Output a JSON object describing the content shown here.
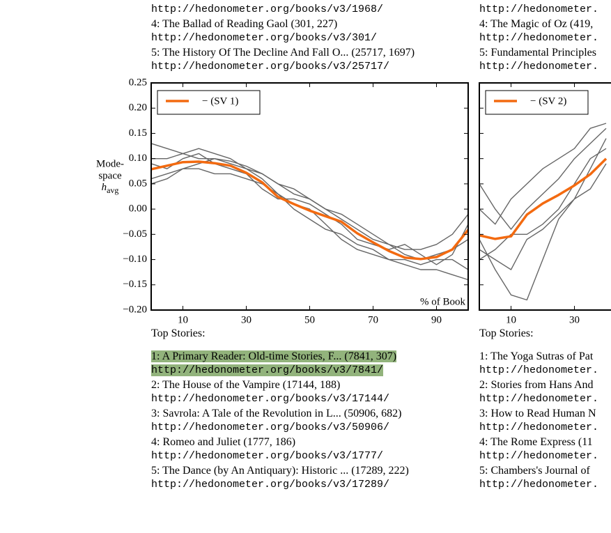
{
  "columns": [
    {
      "top_stories": [
        {
          "url": "http://hedonometer.org/books/v3/1968/"
        },
        {
          "title": "4: The Ballad of Reading Gaol (301, 227)",
          "url": "http://hedonometer.org/books/v3/301/"
        },
        {
          "title": "5: The History Of The Decline And Fall O... (25717, 1697)",
          "url": "http://hedonometer.org/books/v3/25717/"
        }
      ],
      "heading": "Top Stories:",
      "stories": [
        {
          "title": "1: A Primary Reader: Old-time Stories, F... (7841, 307)",
          "url": "http://hedonometer.org/books/v3/7841/",
          "highlight": true
        },
        {
          "title": "2: The House of the Vampire (17144, 188)",
          "url": "http://hedonometer.org/books/v3/17144/"
        },
        {
          "title": "3: Savrola: A Tale of the Revolution in L... (50906, 682)",
          "url": "http://hedonometer.org/books/v3/50906/"
        },
        {
          "title": "4: Romeo and Juliet (1777, 186)",
          "url": "http://hedonometer.org/books/v3/1777/"
        },
        {
          "title": "5: The Dance (by An Antiquary): Historic ... (17289, 222)",
          "url": "http://hedonometer.org/books/v3/17289/"
        }
      ]
    },
    {
      "top_stories": [
        {
          "url": "http://hedonometer."
        },
        {
          "title": "4: The Magic of Oz (419,",
          "url": "http://hedonometer."
        },
        {
          "title": "5: Fundamental Principles",
          "url": "http://hedonometer."
        }
      ],
      "heading": "Top Stories:",
      "stories": [
        {
          "title": "1: The Yoga Sutras of Pat",
          "url": "http://hedonometer."
        },
        {
          "title": "2: Stories from Hans And",
          "url": "http://hedonometer."
        },
        {
          "title": "3: How to Read Human N",
          "url": "http://hedonometer."
        },
        {
          "title": "4: The Rome Express (11",
          "url": "http://hedonometer."
        },
        {
          "title": "5: Chambers's Journal of",
          "url": "http://hedonometer."
        }
      ]
    }
  ],
  "chart_data": [
    {
      "type": "line",
      "ylabel": [
        "Mode-",
        "space"
      ],
      "ylabel_symbol": "h",
      "ylabel_subscript": "avg",
      "annotation": "% of Book",
      "show_ytick_labels": true,
      "xlim": [
        0,
        100
      ],
      "xticks": [
        10,
        30,
        50,
        70,
        90
      ],
      "ylim": [
        -0.2,
        0.25
      ],
      "yticks": [
        {
          "value": -0.2,
          "label": "−0.20"
        },
        {
          "value": -0.15,
          "label": "−0.15"
        },
        {
          "value": -0.1,
          "label": "−0.10"
        },
        {
          "value": -0.05,
          "label": "−0.05"
        },
        {
          "value": 0,
          "label": "0.00"
        },
        {
          "value": 0.05,
          "label": "0.05"
        },
        {
          "value": 0.1,
          "label": "0.10"
        },
        {
          "value": 0.15,
          "label": "0.15"
        },
        {
          "value": 0.2,
          "label": "0.20"
        },
        {
          "value": 0.25,
          "label": "0.25"
        }
      ],
      "x": [
        0,
        5,
        10,
        15,
        20,
        25,
        30,
        35,
        40,
        45,
        50,
        55,
        60,
        65,
        70,
        75,
        80,
        85,
        90,
        95,
        100
      ],
      "series": [
        {
          "color": "#666666",
          "values": [
            0.13,
            0.12,
            0.11,
            0.1,
            0.1,
            0.095,
            0.085,
            0.07,
            0.05,
            0.04,
            0.02,
            0.0,
            -0.02,
            -0.04,
            -0.06,
            -0.07,
            -0.08,
            -0.08,
            -0.07,
            -0.05,
            -0.01
          ]
        },
        {
          "color": "#666666",
          "values": [
            0.06,
            0.07,
            0.08,
            0.09,
            0.1,
            0.09,
            0.08,
            0.06,
            0.03,
            0.01,
            0.0,
            -0.03,
            -0.06,
            -0.08,
            -0.09,
            -0.1,
            -0.11,
            -0.12,
            -0.12,
            -0.13,
            -0.14
          ]
        },
        {
          "color": "#666666",
          "values": [
            0.1,
            0.1,
            0.11,
            0.12,
            0.11,
            0.1,
            0.08,
            0.07,
            0.05,
            0.03,
            0.02,
            0.0,
            -0.01,
            -0.03,
            -0.05,
            -0.07,
            -0.09,
            -0.1,
            -0.09,
            -0.08,
            -0.06
          ]
        },
        {
          "color": "#666666",
          "values": [
            0.05,
            0.06,
            0.08,
            0.08,
            0.07,
            0.07,
            0.06,
            0.05,
            0.03,
            0.0,
            -0.02,
            -0.04,
            -0.05,
            -0.07,
            -0.08,
            -0.1,
            -0.1,
            -0.11,
            -0.1,
            -0.1,
            -0.12
          ]
        },
        {
          "color": "#666666",
          "values": [
            0.09,
            0.08,
            0.1,
            0.11,
            0.09,
            0.08,
            0.07,
            0.04,
            0.02,
            0.02,
            0.01,
            -0.01,
            -0.03,
            -0.06,
            -0.07,
            -0.08,
            -0.07,
            -0.09,
            -0.11,
            -0.09,
            -0.03
          ]
        },
        {
          "name": "− (SV 1)",
          "color": "#f36a10",
          "values": [
            0.079,
            0.086,
            0.093,
            0.094,
            0.091,
            0.086,
            0.072,
            0.053,
            0.024,
            0.01,
            -0.003,
            -0.014,
            -0.025,
            -0.048,
            -0.066,
            -0.083,
            -0.096,
            -0.099,
            -0.095,
            -0.08,
            -0.041
          ]
        }
      ]
    },
    {
      "type": "line",
      "show_ytick_labels": false,
      "xlim": [
        0,
        100
      ],
      "xticks": [
        10,
        30
      ],
      "ylim": [
        -0.2,
        0.25
      ],
      "yticks": [
        -0.2,
        -0.15,
        -0.1,
        -0.05,
        0,
        0.05,
        0.1,
        0.15,
        0.2,
        0.25
      ],
      "x": [
        0,
        5,
        10,
        15,
        20,
        25,
        30,
        35,
        40
      ],
      "series": [
        {
          "color": "#666666",
          "values": [
            -0.06,
            -0.12,
            -0.17,
            -0.18,
            -0.1,
            -0.02,
            0.02,
            0.08,
            0.14
          ]
        },
        {
          "color": "#666666",
          "values": [
            0.0,
            -0.03,
            0.02,
            0.05,
            0.08,
            0.1,
            0.12,
            0.16,
            0.17
          ]
        },
        {
          "color": "#666666",
          "values": [
            -0.1,
            -0.08,
            -0.05,
            -0.05,
            -0.03,
            0.0,
            0.05,
            0.1,
            0.12
          ]
        },
        {
          "color": "#666666",
          "values": [
            0.05,
            0.0,
            -0.04,
            0.0,
            0.03,
            0.06,
            0.1,
            0.13,
            0.16
          ]
        },
        {
          "color": "#666666",
          "values": [
            -0.08,
            -0.1,
            -0.12,
            -0.06,
            -0.04,
            -0.01,
            0.02,
            0.04,
            0.09
          ]
        },
        {
          "name": "− (SV 2)",
          "color": "#f36a10",
          "values": [
            -0.052,
            -0.059,
            -0.054,
            -0.011,
            0.011,
            0.028,
            0.047,
            0.069,
            0.1
          ]
        }
      ]
    }
  ]
}
